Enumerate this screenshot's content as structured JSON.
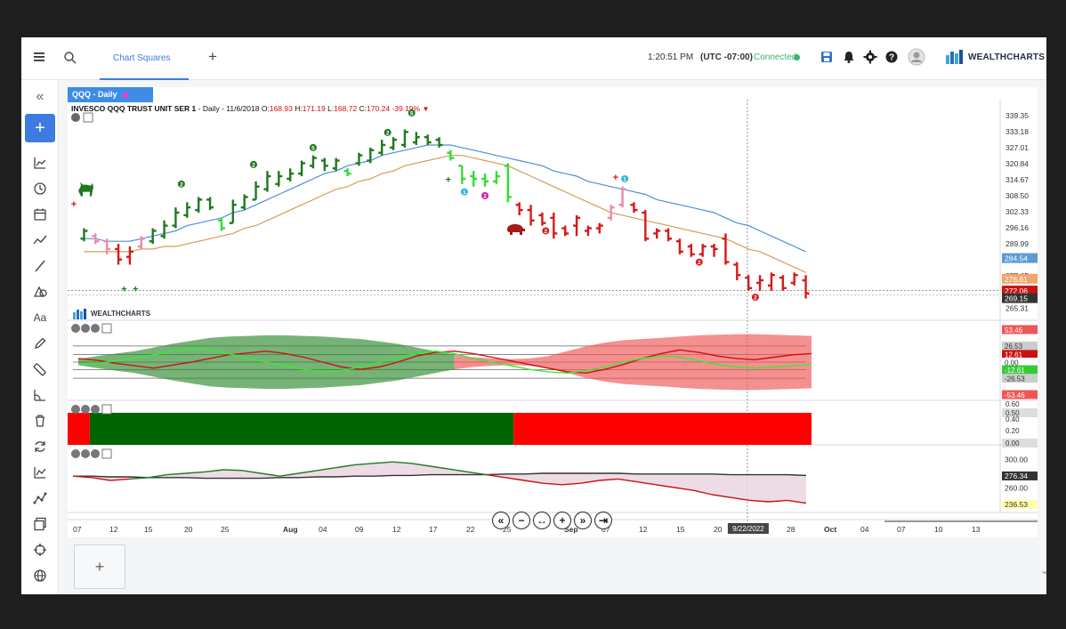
{
  "topbar": {
    "menu_icon": "menu-icon",
    "search_icon": "search-icon",
    "active_tab": "Chart Squares",
    "add_tab": "+",
    "time": "1:20:51 PM",
    "timezone": "(UTC -07:00)",
    "connection": "Connected",
    "connection_color": "#3cb371",
    "brand": "WEALTHCHARTS"
  },
  "leftbar": {
    "collapse": "«",
    "add": "+",
    "text_tool": "Aa"
  },
  "chart": {
    "tab_label": "QQQ - Daily",
    "symbol_name": "INVESCO QQQ TRUST UNIT SER 1",
    "info": "- Daily - 11/6/2018",
    "ohlc": {
      "o_label": "O:",
      "o": "168.93",
      "h_label": "H:",
      "h": "171.19",
      "l_label": "L:",
      "l": "168.72",
      "c_label": "C:",
      "c": "170.24",
      "chg": "-39.19%"
    },
    "watermark": "WEALTHCHARTS",
    "crosshair_date": "9/22/2022"
  },
  "chart_data": [
    {
      "type": "bar",
      "panel": "price",
      "title": "INVESCO QQQ TRUST UNIT SER 1",
      "y_ticks": [
        "339.35",
        "333.18",
        "327.01",
        "320.84",
        "314.67",
        "308.50",
        "302.33",
        "296.16",
        "289.99",
        "277.65",
        "265.31"
      ],
      "ylim": [
        262,
        342
      ],
      "price_badges": [
        {
          "value": "284.54",
          "color": "#5b9bd5"
        },
        {
          "value": "276.61",
          "color": "#f2a46b"
        },
        {
          "value": "272.06",
          "color": "#cc1111"
        },
        {
          "value": "269.15",
          "color": "#333333"
        }
      ],
      "x_labels": [
        "07",
        "12",
        "15",
        "20",
        "25",
        "Aug",
        "04",
        "09",
        "12",
        "17",
        "22",
        "25",
        "Sep",
        "07",
        "12",
        "15",
        "20",
        "28",
        "Oct",
        "04",
        "07",
        "10",
        "13"
      ],
      "bars": [
        [
          0,
          291,
          296,
          292,
          295,
          "g"
        ],
        [
          1,
          290,
          294,
          293,
          291,
          "p"
        ],
        [
          2,
          286,
          292,
          291,
          288,
          "p"
        ],
        [
          3,
          282,
          290,
          288,
          284,
          "r"
        ],
        [
          4,
          282,
          289,
          285,
          287,
          "r"
        ],
        [
          5,
          288,
          293,
          289,
          292,
          "p"
        ],
        [
          6,
          290,
          296,
          291,
          295,
          "g"
        ],
        [
          7,
          292,
          299,
          293,
          297,
          "g"
        ],
        [
          8,
          296,
          304,
          297,
          302,
          "g"
        ],
        [
          9,
          300,
          306,
          301,
          304,
          "g"
        ],
        [
          10,
          302,
          308,
          303,
          307,
          "g"
        ],
        [
          11,
          303,
          308,
          307,
          304,
          "g"
        ],
        [
          12,
          295,
          300,
          299,
          296,
          "l"
        ],
        [
          13,
          298,
          307,
          298,
          305,
          "g"
        ],
        [
          14,
          303,
          309,
          304,
          308,
          "g"
        ],
        [
          15,
          307,
          314,
          307,
          312,
          "g"
        ],
        [
          16,
          310,
          318,
          311,
          316,
          "g"
        ],
        [
          17,
          312,
          318,
          313,
          316,
          "g"
        ],
        [
          18,
          314,
          319,
          315,
          317,
          "g"
        ],
        [
          19,
          316,
          322,
          317,
          321,
          "g"
        ],
        [
          20,
          319,
          324,
          320,
          323,
          "g"
        ],
        [
          21,
          318,
          323,
          322,
          320,
          "g"
        ],
        [
          22,
          318,
          323,
          319,
          322,
          "g"
        ],
        [
          23,
          316,
          319,
          318,
          317,
          "l"
        ],
        [
          24,
          320,
          325,
          321,
          324,
          "g"
        ],
        [
          25,
          321,
          327,
          322,
          326,
          "g"
        ],
        [
          26,
          324,
          330,
          325,
          328,
          "g"
        ],
        [
          27,
          326,
          331,
          327,
          330,
          "g"
        ],
        [
          28,
          327,
          334,
          328,
          333,
          "g"
        ],
        [
          29,
          328,
          333,
          329,
          331,
          "g"
        ],
        [
          30,
          328,
          332,
          331,
          329,
          "g"
        ],
        [
          31,
          327,
          331,
          330,
          328,
          "g"
        ],
        [
          32,
          322,
          326,
          325,
          323,
          "l"
        ],
        [
          33,
          313,
          320,
          320,
          315,
          "l"
        ],
        [
          34,
          312,
          318,
          316,
          315,
          "l"
        ],
        [
          35,
          312,
          317,
          315,
          314,
          "l"
        ],
        [
          36,
          313,
          318,
          314,
          316,
          "l"
        ],
        [
          37,
          306,
          321,
          320,
          308,
          "l"
        ],
        [
          38,
          301,
          306,
          305,
          303,
          "r"
        ],
        [
          39,
          297,
          305,
          303,
          299,
          "r"
        ],
        [
          40,
          297,
          302,
          301,
          298,
          "r"
        ],
        [
          41,
          292,
          302,
          300,
          294,
          "r"
        ],
        [
          42,
          293,
          297,
          296,
          294,
          "r"
        ],
        [
          43,
          293,
          301,
          297,
          300,
          "r"
        ],
        [
          44,
          293,
          297,
          295,
          296,
          "r"
        ],
        [
          45,
          294,
          298,
          296,
          297,
          "r"
        ],
        [
          46,
          299,
          305,
          300,
          304,
          "p"
        ],
        [
          47,
          304,
          312,
          305,
          311,
          "p"
        ],
        [
          48,
          302,
          306,
          305,
          303,
          "r"
        ],
        [
          49,
          291,
          303,
          302,
          292,
          "r"
        ],
        [
          50,
          292,
          296,
          294,
          295,
          "r"
        ],
        [
          51,
          291,
          296,
          295,
          292,
          "r"
        ],
        [
          52,
          286,
          292,
          291,
          287,
          "r"
        ],
        [
          53,
          285,
          290,
          289,
          286,
          "r"
        ],
        [
          54,
          285,
          290,
          286,
          289,
          "r"
        ],
        [
          55,
          285,
          290,
          289,
          288,
          "r"
        ],
        [
          56,
          282,
          294,
          292,
          283,
          "r"
        ],
        [
          57,
          276,
          283,
          282,
          278,
          "r"
        ],
        [
          58,
          272,
          278,
          277,
          273,
          "r"
        ],
        [
          59,
          272,
          278,
          275,
          276,
          "r"
        ],
        [
          60,
          272,
          279,
          274,
          278,
          "r"
        ],
        [
          61,
          272,
          278,
          277,
          273,
          "r"
        ],
        [
          62,
          274,
          279,
          275,
          278,
          "r"
        ],
        [
          63,
          269,
          278,
          276,
          271,
          "r"
        ]
      ],
      "series": [
        {
          "name": "",
          "color": "#4a90d9",
          "values": [
            292,
            292,
            291,
            291,
            291,
            292,
            293,
            294,
            295,
            297,
            298,
            299,
            300,
            302,
            303,
            305,
            307,
            309,
            311,
            313,
            315,
            317,
            318,
            320,
            321,
            322,
            324,
            325,
            326,
            327,
            328,
            328,
            328,
            327,
            326,
            325,
            324,
            323,
            322,
            321,
            320,
            318,
            317,
            316,
            314,
            313,
            312,
            311,
            310,
            309,
            307,
            306,
            305,
            304,
            303,
            302,
            300,
            298,
            297,
            295,
            293,
            291,
            289,
            287
          ]
        },
        {
          "name": "",
          "color": "#d89b5a",
          "values": [
            287,
            287,
            287,
            287,
            287,
            288,
            288,
            289,
            289,
            290,
            291,
            292,
            293,
            294,
            296,
            297,
            299,
            301,
            303,
            305,
            307,
            309,
            311,
            312,
            314,
            315,
            317,
            318,
            320,
            321,
            322,
            323,
            324,
            324,
            323,
            322,
            321,
            320,
            318,
            316,
            314,
            312,
            310,
            308,
            306,
            304,
            302,
            301,
            300,
            299,
            298,
            297,
            296,
            295,
            294,
            293,
            292,
            290,
            288,
            287,
            285,
            283,
            281,
            279
          ]
        }
      ]
    },
    {
      "type": "area",
      "panel": "oscillator",
      "y_ticks": [
        "53.46",
        "26.53",
        "12.61",
        "0.00",
        "-12.61",
        "-26.53",
        "-53.46"
      ],
      "ylim": [
        -60,
        60
      ],
      "upper": [
        5,
        10,
        14,
        18,
        24,
        30,
        35,
        40,
        42,
        43,
        44,
        44,
        43,
        42,
        40,
        38,
        34,
        30,
        24,
        18,
        12,
        8,
        6,
        5,
        6,
        10,
        18,
        26,
        32,
        36,
        38,
        40,
        42,
        44,
        45,
        46,
        46,
        45,
        44,
        43
      ],
      "red_line": [
        6,
        3,
        -2,
        -6,
        -10,
        -5,
        0,
        6,
        12,
        15,
        18,
        14,
        8,
        0,
        -8,
        -12,
        -8,
        0,
        10,
        16,
        18,
        14,
        8,
        2,
        -4,
        -10,
        -16,
        -18,
        -12,
        -4,
        6,
        14,
        20,
        16,
        10,
        6,
        4,
        8,
        12,
        14
      ],
      "green_line": [
        -4,
        -2,
        2,
        6,
        12,
        18,
        22,
        20,
        14,
        6,
        0,
        -6,
        -12,
        -16,
        -14,
        -8,
        0,
        8,
        14,
        18,
        14,
        6,
        0,
        -6,
        -12,
        -16,
        -18,
        -14,
        -8,
        0,
        6,
        10,
        8,
        2,
        -4,
        -8,
        -10,
        -8,
        -6,
        -4
      ],
      "color_split_index": 20
    },
    {
      "type": "heatmap",
      "panel": "state",
      "y_ticks": [
        "0.60",
        "0.50",
        "0.40",
        "0.20",
        "0.00"
      ],
      "segments": [
        {
          "from": 0,
          "to": 1,
          "color": "#ff0000"
        },
        {
          "from": 1,
          "to": 38,
          "color": "#006400"
        },
        {
          "from": 38,
          "to": 64,
          "color": "#ff0000"
        }
      ]
    },
    {
      "type": "line",
      "panel": "rs",
      "y_ticks": [
        "300.00",
        "276.34",
        "260.00",
        "236.53"
      ],
      "ylim": [
        230,
        310
      ],
      "dark_line": [
        276,
        276,
        275,
        275,
        274,
        274,
        274,
        273,
        273,
        273,
        273,
        274,
        274,
        275,
        275,
        276,
        276,
        277,
        277,
        278,
        278,
        278,
        278,
        279,
        279,
        280,
        280,
        280,
        280,
        280,
        279,
        279,
        279,
        279,
        279,
        278,
        278,
        278,
        278,
        277
      ],
      "red_line": [
        276,
        274,
        270,
        272,
        274,
        278,
        280,
        282,
        285,
        284,
        280,
        276,
        280,
        284,
        288,
        292,
        294,
        296,
        294,
        290,
        286,
        282,
        278,
        274,
        270,
        266,
        264,
        266,
        270,
        272,
        268,
        264,
        260,
        256,
        250,
        246,
        242,
        240,
        242,
        238
      ]
    }
  ]
}
